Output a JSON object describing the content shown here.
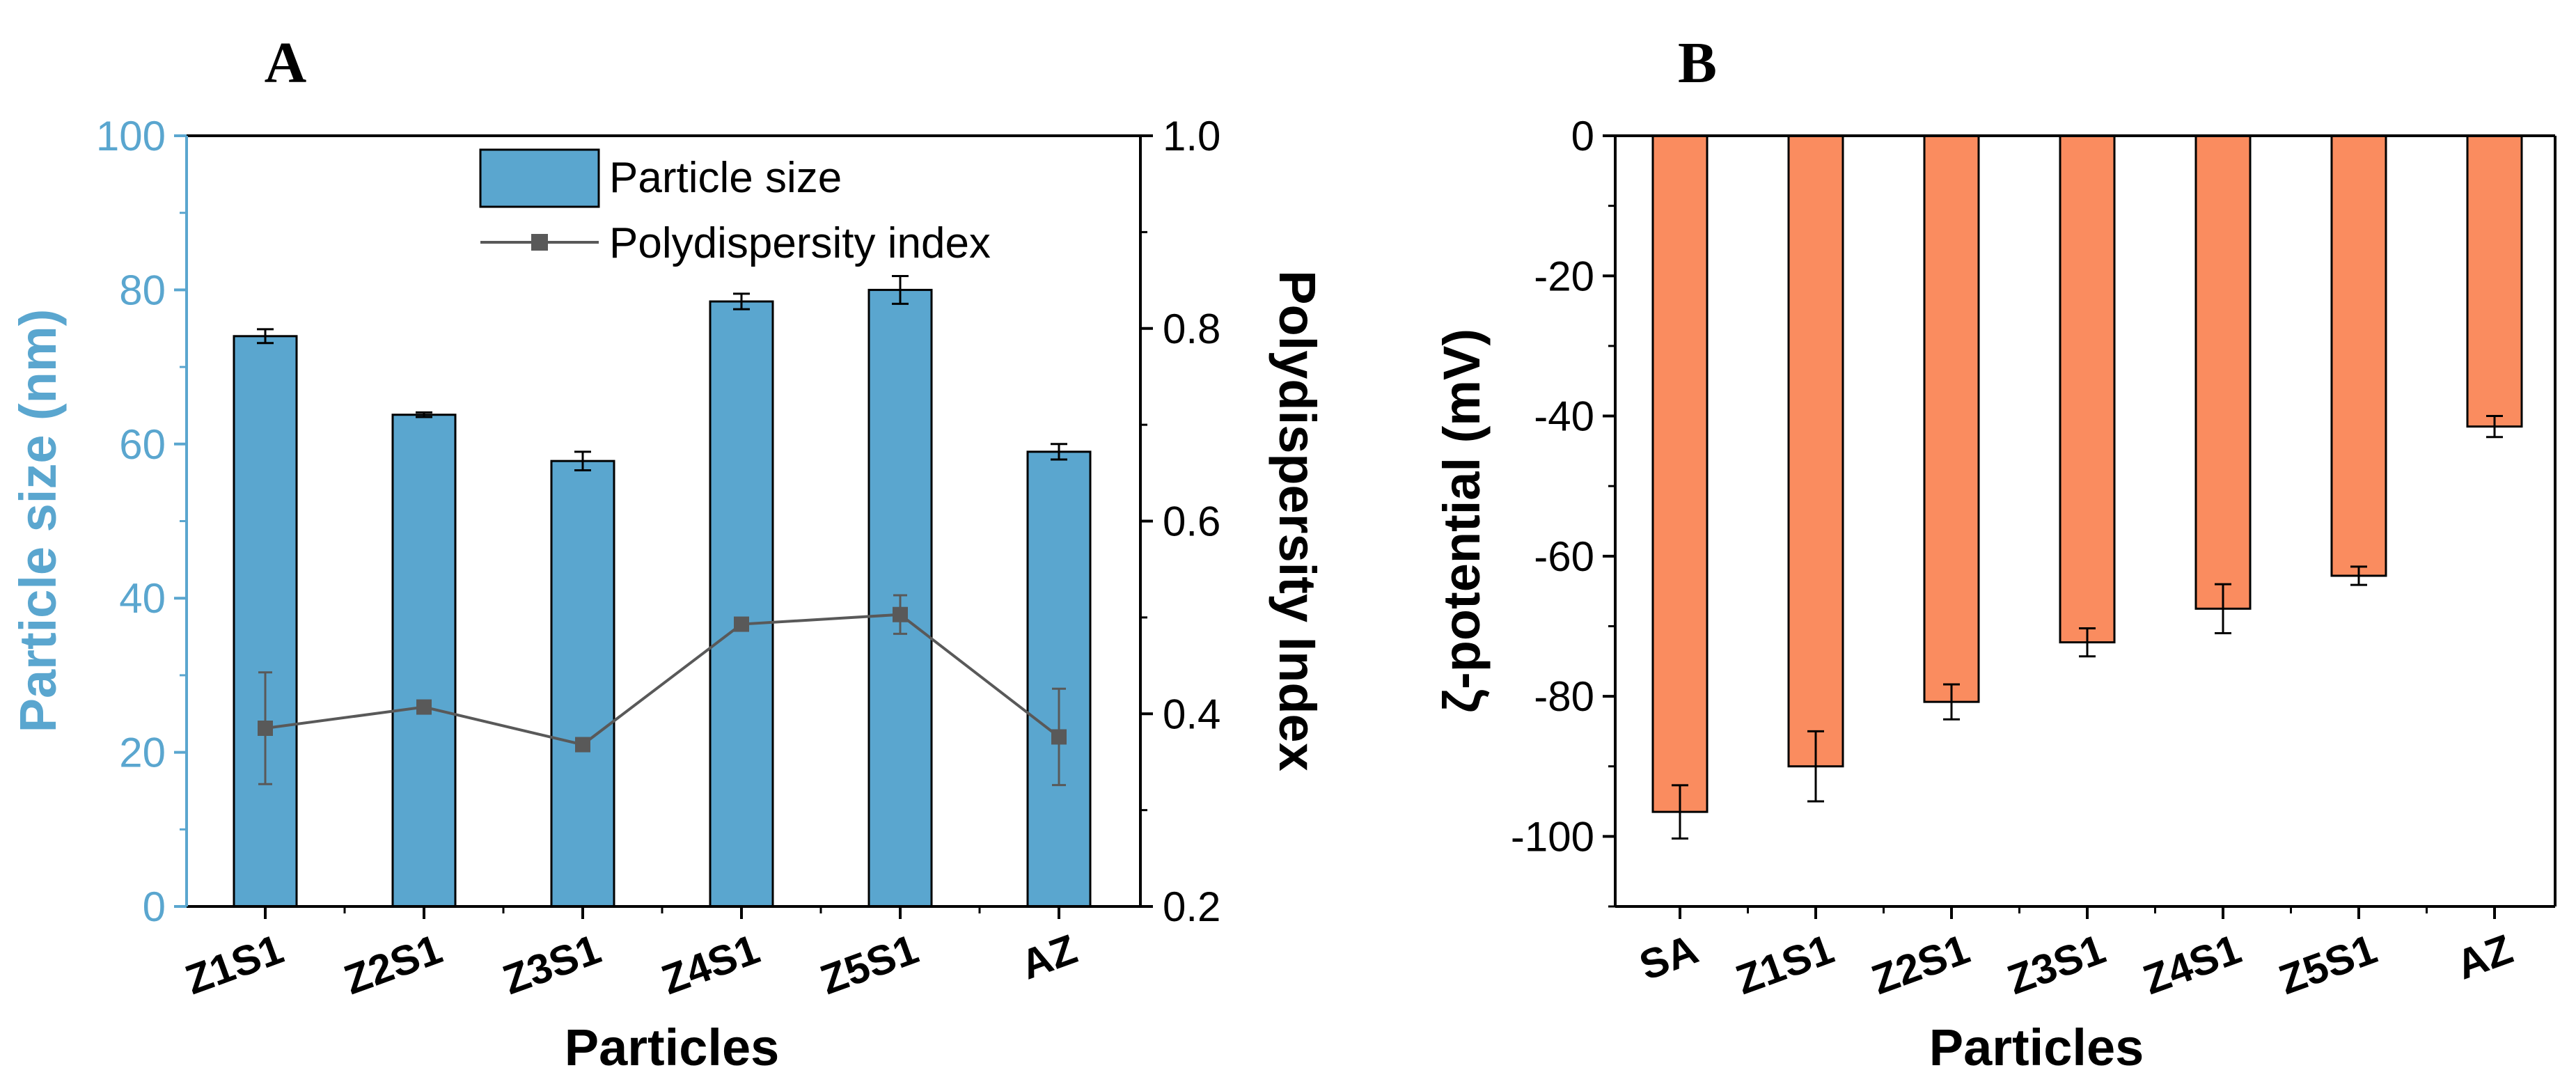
{
  "chart_data": [
    {
      "panel": "A",
      "type": "bar",
      "title": "",
      "xlabel": "Particles",
      "ylabel": "Particle size (nm)",
      "y2label": "Polydispersity Index",
      "categories": [
        "Z1S1",
        "Z2S1",
        "Z3S1",
        "Z4S1",
        "Z5S1",
        "AZ"
      ],
      "ylim": [
        0,
        100
      ],
      "yticks": [
        "0",
        "20",
        "40",
        "60",
        "80",
        "100"
      ],
      "y2lim": [
        0.2,
        1.0
      ],
      "y2ticks": [
        "0.2",
        "0.4",
        "0.6",
        "0.8",
        "1.0"
      ],
      "legend": {
        "placement": "top-center",
        "entries": [
          "Particle size",
          "Polydispersity index"
        ]
      },
      "series": [
        {
          "name": "Particle size",
          "type": "bar",
          "axis": "left",
          "values": [
            74.0,
            63.8,
            57.8,
            78.5,
            80.0,
            59.0
          ],
          "errors": [
            0.9,
            0.3,
            1.2,
            1.0,
            1.8,
            1.0
          ]
        },
        {
          "name": "Polydispersity index",
          "type": "line",
          "axis": "right",
          "values": [
            0.385,
            0.407,
            0.368,
            0.493,
            0.503,
            0.376
          ],
          "errors": [
            0.058,
            0.003,
            0.003,
            0.003,
            0.02,
            0.05
          ]
        }
      ],
      "colors": {
        "bar": "#5aa6cf",
        "line": "#595959",
        "axis_left": "#5aa6cf"
      }
    },
    {
      "panel": "B",
      "type": "bar",
      "title": "",
      "xlabel": "Particles",
      "ylabel": "ζ-potential (mV)",
      "categories": [
        "SA",
        "Z1S1",
        "Z2S1",
        "Z3S1",
        "Z4S1",
        "Z5S1",
        "AZ"
      ],
      "ylim": [
        -110,
        0
      ],
      "yticks": [
        "0",
        "-20",
        "-40",
        "-60",
        "-80",
        "-100"
      ],
      "series": [
        {
          "name": "ζ-potential",
          "type": "bar",
          "values": [
            -96.5,
            -90.0,
            -80.8,
            -72.3,
            -67.5,
            -62.8,
            -41.5
          ],
          "errors": [
            3.8,
            5.0,
            2.5,
            2.0,
            3.5,
            1.3,
            1.5
          ]
        }
      ],
      "colors": {
        "bar": "#fa8c5f"
      }
    }
  ]
}
